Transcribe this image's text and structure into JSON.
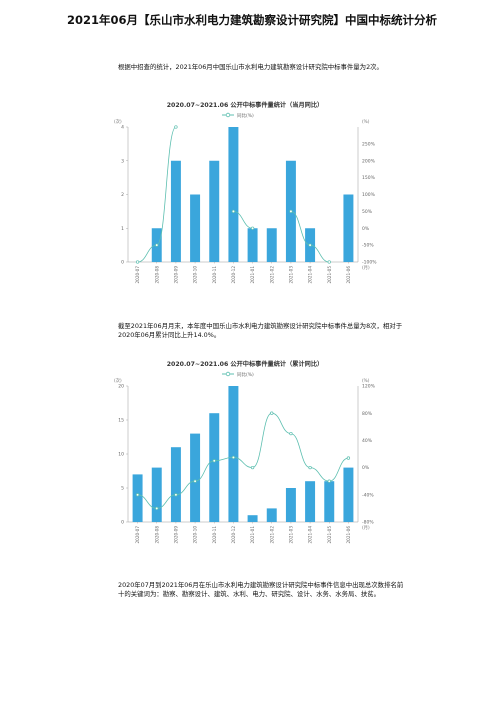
{
  "document": {
    "title": "2021年06月【乐山市水利电力建筑勘察设计研究院】中国中标统计分析",
    "para1": "根据中招查的统计，2021年06月中国乐山市水利电力建筑勘察设计研究院中标事件量为2次。",
    "para2": "截至2021年06月月末，本年度中国乐山市水利电力建筑勘察设计研究院中标事件总量为8次，相对于2020年06月累计同比上升14.0%。",
    "para3": "2020年07月到2021年06月在乐山市水利电力建筑勘察设计研究院中标事件信息中出现总次数排名前十的关键词为：勘察、勘察设计、建筑、水利、电力、研究院、设计、水务、水务局、扶贫。"
  },
  "chart_data": [
    {
      "type": "bar",
      "title": "2020.07~2021.06 公开中标事件量统计（当月同比）",
      "legend": "同比(%)",
      "y_unit_left": "(次)",
      "y_unit_right": "(%)",
      "x_unit": "(月)",
      "categories": [
        "2020-07",
        "2020-08",
        "2020-09",
        "2020-10",
        "2020-11",
        "2020-12",
        "2021-01",
        "2021-02",
        "2021-03",
        "2021-04",
        "2021-05",
        "2021-06"
      ],
      "values": [
        0,
        1,
        3,
        2,
        3,
        4,
        1,
        1,
        3,
        1,
        0,
        2
      ],
      "ylim": [
        0,
        4
      ],
      "yticks": [
        "0",
        "1",
        "2",
        "3",
        "4"
      ],
      "yoy": [
        -100,
        -50,
        300,
        null,
        null,
        50,
        0,
        null,
        50,
        -50,
        -100,
        null
      ],
      "y2lim": [
        -100,
        300
      ],
      "y2ticks": [
        "-100%",
        "-50%",
        "0%",
        "50%",
        "100%",
        "150%",
        "200%",
        "250%"
      ],
      "colors": {
        "bar": "#3aa6dc",
        "line": "#5dbfb0"
      }
    },
    {
      "type": "bar",
      "title": "2020.07~2021.06 公开中标事件量统计（累计同比）",
      "legend": "同比(%)",
      "y_unit_left": "(次)",
      "y_unit_right": "(%)",
      "x_unit": "(月)",
      "categories": [
        "2020-07",
        "2020-08",
        "2020-09",
        "2020-10",
        "2020-11",
        "2020-12",
        "2021-01",
        "2021-02",
        "2021-03",
        "2021-04",
        "2021-05",
        "2021-06"
      ],
      "values": [
        7,
        8,
        11,
        13,
        16,
        20,
        1,
        2,
        5,
        6,
        6,
        8
      ],
      "ylim": [
        0,
        20
      ],
      "yticks": [
        "0",
        "5",
        "10",
        "15",
        "20"
      ],
      "yoy": [
        -40,
        -60,
        -40,
        -20,
        10,
        15,
        0,
        80,
        50,
        0,
        -20,
        14
      ],
      "y2lim": [
        -80,
        120
      ],
      "y2ticks": [
        "-80%",
        "-40%",
        "0%",
        "40%",
        "80%",
        "120%"
      ],
      "colors": {
        "bar": "#3aa6dc",
        "line": "#5dbfb0"
      }
    }
  ]
}
